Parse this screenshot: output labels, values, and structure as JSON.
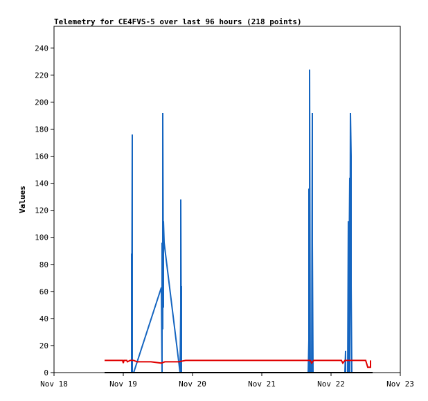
{
  "chart_data": {
    "type": "line",
    "title": "Telemetry for CE4FVS-5 over last 96 hours (218 points)",
    "xlabel": "",
    "ylabel": "Values",
    "xlim": [
      0,
      5
    ],
    "ylim": [
      0,
      256
    ],
    "x_tick_labels": [
      "Nov 18",
      "Nov 19",
      "Nov 20",
      "Nov 21",
      "Nov 22",
      "Nov 23"
    ],
    "y_ticks": [
      0,
      20,
      40,
      60,
      80,
      100,
      120,
      140,
      160,
      180,
      200,
      220,
      240
    ],
    "grid": false,
    "legend": "none",
    "series": [
      {
        "color": "#1565c0",
        "points": [
          [
            1.12,
            88
          ],
          [
            1.12,
            0
          ],
          [
            1.13,
            176
          ],
          [
            1.13,
            0
          ],
          [
            1.15,
            0
          ],
          [
            1.55,
            63
          ],
          [
            1.56,
            0
          ],
          [
            1.56,
            96
          ],
          [
            1.57,
            32
          ],
          [
            1.57,
            192
          ],
          [
            1.58,
            48
          ],
          [
            1.58,
            112
          ],
          [
            1.59,
            96
          ],
          [
            1.82,
            0
          ],
          [
            1.83,
            48
          ],
          [
            1.83,
            128
          ],
          [
            1.84,
            0
          ],
          [
            1.84,
            64
          ],
          [
            1.84,
            0
          ],
          [
            3.67,
            0
          ],
          [
            3.68,
            24
          ],
          [
            3.68,
            136
          ],
          [
            3.69,
            0
          ],
          [
            3.69,
            224
          ],
          [
            3.7,
            0
          ],
          [
            3.72,
            0
          ],
          [
            3.73,
            192
          ],
          [
            3.73,
            96
          ],
          [
            3.74,
            0
          ],
          [
            4.2,
            0
          ],
          [
            4.21,
            16
          ],
          [
            4.21,
            0
          ],
          [
            4.24,
            0
          ],
          [
            4.25,
            112
          ],
          [
            4.26,
            0
          ],
          [
            4.26,
            80
          ],
          [
            4.27,
            144
          ],
          [
            4.27,
            0
          ],
          [
            4.28,
            192
          ],
          [
            4.29,
            160
          ],
          [
            4.29,
            64
          ],
          [
            4.3,
            0
          ]
        ]
      },
      {
        "color": "#e00000",
        "points": [
          [
            0.73,
            9
          ],
          [
            0.99,
            9
          ],
          [
            1.0,
            7
          ],
          [
            1.01,
            9
          ],
          [
            1.05,
            9
          ],
          [
            1.06,
            8
          ],
          [
            1.1,
            9
          ],
          [
            1.15,
            9
          ],
          [
            1.2,
            8
          ],
          [
            1.4,
            8
          ],
          [
            1.55,
            7
          ],
          [
            1.6,
            8
          ],
          [
            1.8,
            8
          ],
          [
            1.9,
            9
          ],
          [
            3.6,
            9
          ],
          [
            3.7,
            9
          ],
          [
            3.72,
            7
          ],
          [
            3.75,
            9
          ],
          [
            4.1,
            9
          ],
          [
            4.15,
            9
          ],
          [
            4.17,
            7
          ],
          [
            4.2,
            9
          ],
          [
            4.5,
            9
          ],
          [
            4.53,
            4
          ],
          [
            4.57,
            4
          ],
          [
            4.57,
            9
          ]
        ]
      },
      {
        "color": "#000000",
        "points": [
          [
            0.73,
            0
          ],
          [
            4.6,
            0
          ]
        ]
      }
    ]
  }
}
